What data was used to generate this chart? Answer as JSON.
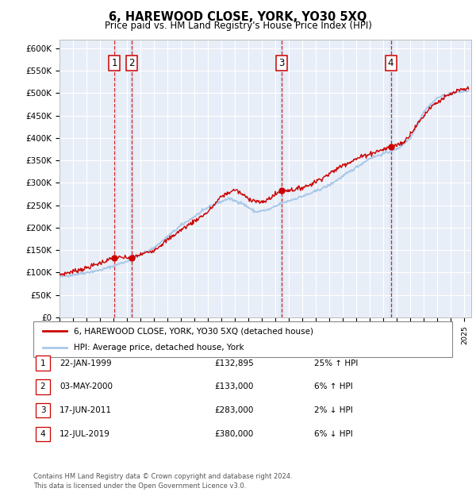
{
  "title": "6, HAREWOOD CLOSE, YORK, YO30 5XQ",
  "subtitle": "Price paid vs. HM Land Registry's House Price Index (HPI)",
  "ylim": [
    0,
    620000
  ],
  "yticks": [
    0,
    50000,
    100000,
    150000,
    200000,
    250000,
    300000,
    350000,
    400000,
    450000,
    500000,
    550000,
    600000
  ],
  "background_color": "#ffffff",
  "plot_bg_color": "#e8eef8",
  "grid_color": "#ffffff",
  "sale_color": "#cc0000",
  "hpi_color": "#aac8e8",
  "vline_color": "#cc0000",
  "sale_points": [
    {
      "year": 1999.06,
      "value": 132895,
      "label": "1"
    },
    {
      "year": 2000.33,
      "value": 133000,
      "label": "2"
    },
    {
      "year": 2011.46,
      "value": 283000,
      "label": "3"
    },
    {
      "year": 2019.54,
      "value": 380000,
      "label": "4"
    }
  ],
  "legend_entries": [
    "6, HAREWOOD CLOSE, YORK, YO30 5XQ (detached house)",
    "HPI: Average price, detached house, York"
  ],
  "table_rows": [
    {
      "num": "1",
      "date": "22-JAN-1999",
      "price": "£132,895",
      "hpi": "25% ↑ HPI"
    },
    {
      "num": "2",
      "date": "03-MAY-2000",
      "price": "£133,000",
      "hpi": "6% ↑ HPI"
    },
    {
      "num": "3",
      "date": "17-JUN-2011",
      "price": "£283,000",
      "hpi": "2% ↓ HPI"
    },
    {
      "num": "4",
      "date": "12-JUL-2019",
      "price": "£380,000",
      "hpi": "6% ↓ HPI"
    }
  ],
  "footer": "Contains HM Land Registry data © Crown copyright and database right 2024.\nThis data is licensed under the Open Government Licence v3.0.",
  "xmin": 1995.0,
  "xmax": 2025.5
}
